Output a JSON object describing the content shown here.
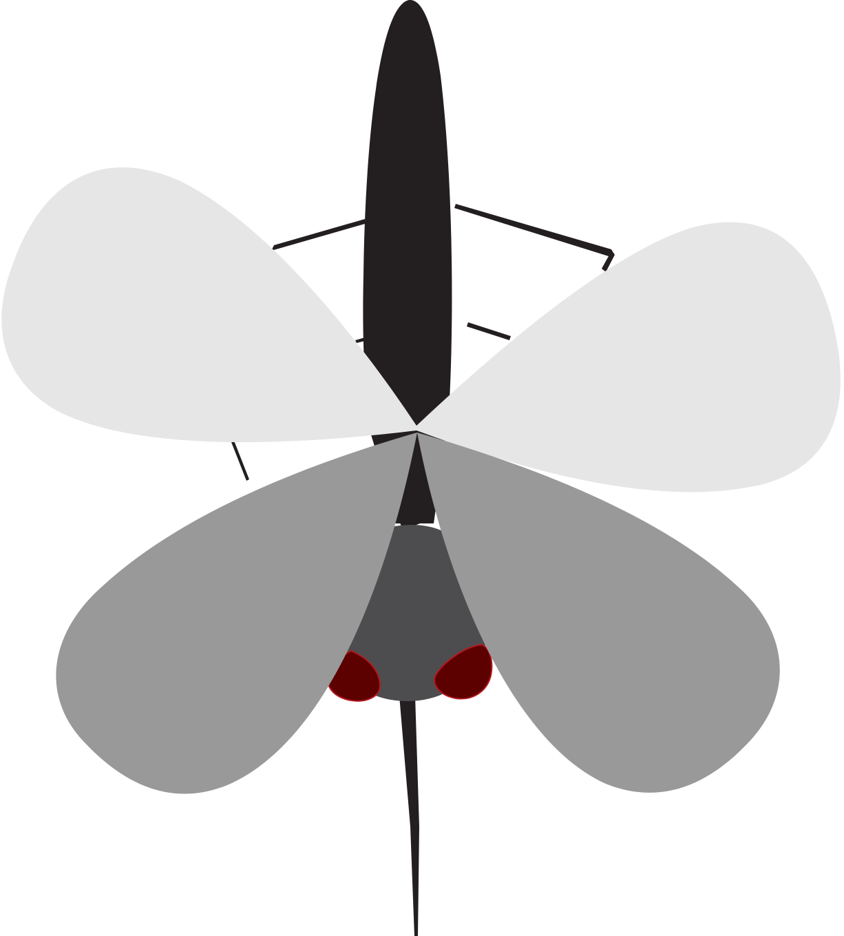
{
  "illustration": {
    "subject": "insect",
    "view": "top-down",
    "parts": {
      "abdomen": "abdomen",
      "thorax": "thorax",
      "head": "head",
      "proboscis": "proboscis",
      "forewings": [
        "forewing-left",
        "forewing-right"
      ],
      "hindwings": [
        "hindwing-left",
        "hindwing-right"
      ],
      "eyes": [
        "eye-left",
        "eye-right"
      ],
      "legs": [
        "leg-upper-left",
        "leg-upper-right",
        "leg-middle-left",
        "leg-middle-right",
        "leg-lower-left"
      ]
    },
    "colors": {
      "background": "#ffffff",
      "body": "#231f20",
      "head": "#4d4d4f",
      "forewing": "#e6e6e6",
      "hindwing": "#999999",
      "eye_fill": "#5c0000",
      "eye_stroke": "#b3181d",
      "leg": "#231f20"
    }
  }
}
